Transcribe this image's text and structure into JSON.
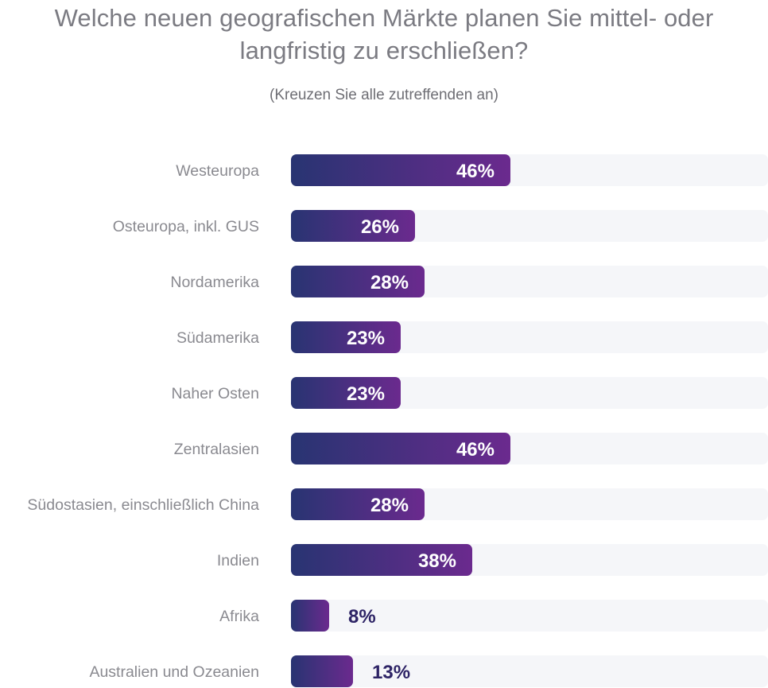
{
  "title_lines": [
    "Welche neuen geografischen Märkte planen Sie mittel- oder",
    "langfristig zu erschließen?"
  ],
  "subtitle": "(Kreuzen Sie alle zutreffenden an)",
  "colors": {
    "bar_start": "#283472",
    "bar_end": "#6b2a8e",
    "track": "#f5f6f9",
    "label": "#8a8a90",
    "value_outside": "#2e2466"
  },
  "chart_data": {
    "type": "bar",
    "orientation": "horizontal",
    "categories": [
      "Westeuropa",
      "Osteuropa, inkl. GUS",
      "Nordamerika",
      "Südamerika",
      "Naher Osten",
      "Zentralasien",
      "Südostasien, einschließlich China",
      "Indien",
      "Afrika",
      "Australien und Ozeanien"
    ],
    "values": [
      46,
      26,
      28,
      23,
      23,
      46,
      28,
      38,
      8,
      13
    ],
    "value_labels": [
      "46%",
      "26%",
      "28%",
      "23%",
      "23%",
      "46%",
      "28%",
      "38%",
      "8%",
      "13%"
    ],
    "unit": "%",
    "xlim": [
      0,
      100
    ]
  }
}
